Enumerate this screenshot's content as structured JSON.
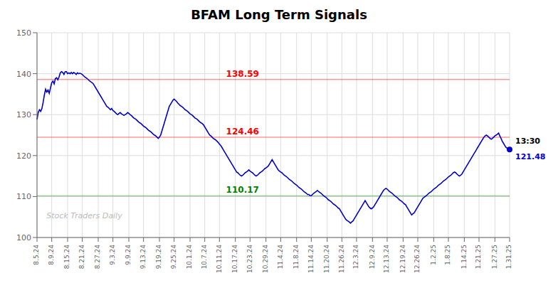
{
  "chart_data": {
    "type": "line",
    "title": "BFAM Long Term Signals",
    "color": "#0000cc",
    "grid": true,
    "ylim": [
      100,
      150
    ],
    "yticks": [
      100,
      110,
      120,
      130,
      140,
      150
    ],
    "watermark": "Stock Traders Daily",
    "reference_lines": [
      {
        "value": 138.59,
        "label": "138.59",
        "color": "red"
      },
      {
        "value": 124.46,
        "label": "124.46",
        "color": "red"
      },
      {
        "value": 110.17,
        "label": "110.17",
        "color": "green"
      }
    ],
    "annotations": [
      {
        "text": "13:30",
        "color": "black"
      },
      {
        "text": "121.48",
        "color": "#0000cc"
      }
    ],
    "categories": [
      "8.5.24",
      null,
      null,
      null,
      null,
      null,
      null,
      null,
      null,
      null,
      null,
      null,
      "8.9.24",
      null,
      null,
      null,
      null,
      null,
      null,
      null,
      null,
      null,
      null,
      null,
      null,
      "8.15.24",
      null,
      null,
      null,
      null,
      null,
      null,
      null,
      null,
      null,
      null,
      null,
      "8.21.24",
      null,
      null,
      null,
      null,
      null,
      null,
      null,
      null,
      null,
      null,
      null,
      null,
      "8.27.24",
      null,
      null,
      null,
      null,
      null,
      null,
      null,
      null,
      null,
      null,
      null,
      "9.3.24",
      null,
      null,
      null,
      null,
      null,
      null,
      null,
      null,
      null,
      null,
      null,
      null,
      "9.9.24",
      null,
      null,
      null,
      null,
      null,
      null,
      null,
      null,
      null,
      null,
      null,
      "9.13.24",
      null,
      null,
      null,
      null,
      null,
      null,
      null,
      null,
      null,
      null,
      null,
      null,
      "9.19.24",
      null,
      null,
      null,
      null,
      null,
      null,
      null,
      null,
      null,
      null,
      null,
      "9.25.24",
      null,
      null,
      null,
      null,
      null,
      null,
      null,
      null,
      null,
      null,
      null,
      null,
      "10.1.24",
      null,
      null,
      null,
      null,
      null,
      null,
      null,
      null,
      null,
      null,
      null,
      "10.7.24",
      null,
      null,
      null,
      null,
      null,
      null,
      null,
      null,
      null,
      null,
      null,
      "10.11.24",
      null,
      null,
      null,
      null,
      null,
      null,
      null,
      null,
      null,
      null,
      null,
      null,
      "10.17.24",
      null,
      null,
      null,
      null,
      null,
      null,
      null,
      null,
      null,
      null,
      null,
      "10.23.24",
      null,
      null,
      null,
      null,
      null,
      null,
      null,
      null,
      null,
      null,
      null,
      null,
      "10.29.24",
      null,
      null,
      null,
      null,
      null,
      null,
      null,
      null,
      null,
      null,
      null,
      "11.4.24",
      null,
      null,
      null,
      null,
      null,
      null,
      null,
      null,
      null,
      null,
      null,
      null,
      "11.8.24",
      null,
      null,
      null,
      null,
      null,
      null,
      null,
      null,
      null,
      null,
      null,
      "11.14.24",
      null,
      null,
      null,
      null,
      null,
      null,
      null,
      null,
      null,
      null,
      null,
      null,
      "11.20.24",
      null,
      null,
      null,
      null,
      null,
      null,
      null,
      null,
      null,
      null,
      null,
      "11.26.24",
      null,
      null,
      null,
      null,
      null,
      null,
      null,
      null,
      null,
      null,
      null,
      "12.3.24",
      null,
      null,
      null,
      null,
      null,
      null,
      null,
      null,
      null,
      null,
      null,
      null,
      "12.9.24",
      null,
      null,
      null,
      null,
      null,
      null,
      null,
      null,
      null,
      null,
      null,
      "12.13.24",
      null,
      null,
      null,
      null,
      null,
      null,
      null,
      null,
      null,
      null,
      null,
      null,
      "12.19.24",
      null,
      null,
      null,
      null,
      null,
      null,
      null,
      null,
      null,
      null,
      null,
      "12.26.24",
      null,
      null,
      null,
      null,
      null,
      null,
      null,
      null,
      null,
      null,
      null,
      null,
      "1.2.25",
      null,
      null,
      null,
      null,
      null,
      null,
      null,
      null,
      null,
      null,
      null,
      "1.8.25",
      null,
      null,
      null,
      null,
      null,
      null,
      null,
      null,
      null,
      null,
      null,
      null,
      "1.14.25",
      null,
      null,
      null,
      null,
      null,
      null,
      null,
      null,
      null,
      null,
      null,
      "1.21.25",
      null,
      null,
      null,
      null,
      null,
      null,
      null,
      null,
      null,
      null,
      null,
      null,
      "1.27.25",
      null,
      null,
      null,
      null,
      null,
      null,
      null,
      null,
      null,
      null,
      null,
      "1.31.25"
    ],
    "values": [
      128.8,
      130.5,
      131.2,
      130.8,
      131.5,
      133.0,
      134.8,
      136.2,
      135.5,
      136.0,
      135.2,
      136.5,
      137.8,
      138.2,
      137.5,
      138.8,
      139.0,
      138.5,
      139.2,
      140.2,
      140.5,
      140.3,
      139.8,
      140.5,
      140.5,
      140.0,
      140.2,
      140.0,
      140.3,
      140.0,
      140.3,
      140.1,
      139.8,
      140.2,
      140.0,
      140.1,
      140.0,
      139.8,
      139.5,
      139.2,
      139.0,
      138.8,
      138.5,
      138.2,
      138.0,
      137.8,
      137.5,
      137.0,
      136.5,
      136.0,
      135.5,
      135.0,
      134.5,
      134.0,
      133.5,
      133.0,
      132.5,
      132.0,
      131.8,
      131.5,
      131.2,
      131.5,
      131.0,
      130.8,
      130.5,
      130.2,
      130.0,
      130.3,
      130.5,
      130.2,
      130.0,
      129.8,
      130.0,
      130.2,
      130.5,
      130.3,
      130.0,
      129.8,
      129.5,
      129.2,
      129.0,
      128.8,
      128.5,
      128.2,
      128.0,
      127.8,
      127.5,
      127.2,
      127.0,
      126.8,
      126.5,
      126.2,
      126.0,
      125.8,
      125.5,
      125.2,
      125.0,
      124.8,
      124.5,
      124.2,
      124.5,
      125.0,
      126.0,
      127.0,
      128.0,
      129.0,
      130.0,
      131.0,
      132.0,
      132.5,
      133.0,
      133.5,
      133.8,
      133.5,
      133.2,
      132.8,
      132.5,
      132.2,
      132.0,
      131.8,
      131.5,
      131.2,
      131.0,
      130.8,
      130.5,
      130.2,
      130.0,
      129.8,
      129.5,
      129.2,
      129.0,
      128.8,
      128.5,
      128.2,
      128.0,
      127.8,
      127.5,
      127.0,
      126.5,
      126.0,
      125.5,
      125.0,
      124.8,
      124.5,
      124.2,
      124.0,
      123.8,
      123.5,
      123.2,
      122.8,
      122.5,
      122.0,
      121.5,
      121.0,
      120.5,
      120.0,
      119.5,
      119.0,
      118.5,
      118.0,
      117.5,
      117.0,
      116.5,
      116.0,
      115.8,
      115.5,
      115.2,
      115.0,
      115.2,
      115.5,
      115.8,
      116.0,
      116.2,
      116.5,
      116.2,
      116.0,
      115.8,
      115.5,
      115.2,
      115.0,
      115.2,
      115.5,
      115.8,
      116.0,
      116.2,
      116.5,
      116.8,
      117.0,
      117.2,
      117.5,
      118.0,
      118.5,
      119.0,
      118.5,
      118.0,
      117.5,
      117.0,
      116.5,
      116.2,
      116.0,
      115.8,
      115.5,
      115.2,
      115.0,
      114.8,
      114.5,
      114.2,
      114.0,
      113.8,
      113.5,
      113.2,
      113.0,
      112.8,
      112.5,
      112.2,
      112.0,
      111.8,
      111.5,
      111.2,
      111.0,
      110.8,
      110.5,
      110.5,
      110.2,
      110.2,
      110.5,
      110.8,
      111.0,
      111.2,
      111.5,
      111.2,
      111.0,
      110.8,
      110.5,
      110.2,
      110.0,
      109.8,
      109.5,
      109.2,
      109.0,
      108.8,
      108.5,
      108.2,
      108.0,
      107.8,
      107.5,
      107.2,
      107.0,
      106.5,
      106.0,
      105.5,
      105.0,
      104.5,
      104.2,
      104.0,
      103.8,
      103.5,
      103.8,
      104.0,
      104.5,
      105.0,
      105.5,
      106.0,
      106.5,
      107.0,
      107.5,
      108.0,
      108.5,
      109.0,
      108.5,
      108.0,
      107.5,
      107.2,
      107.0,
      107.2,
      107.5,
      108.0,
      108.5,
      109.0,
      109.5,
      110.0,
      110.5,
      111.0,
      111.5,
      111.8,
      112.0,
      111.8,
      111.5,
      111.2,
      111.0,
      110.8,
      110.5,
      110.2,
      110.0,
      109.8,
      109.5,
      109.2,
      109.0,
      108.8,
      108.5,
      108.2,
      108.0,
      107.5,
      107.0,
      106.5,
      106.0,
      105.5,
      105.8,
      106.0,
      106.5,
      107.0,
      107.5,
      108.0,
      108.5,
      109.0,
      109.5,
      109.8,
      110.0,
      110.2,
      110.5,
      110.8,
      111.0,
      111.2,
      111.5,
      111.8,
      112.0,
      112.2,
      112.5,
      112.8,
      113.0,
      113.2,
      113.5,
      113.8,
      114.0,
      114.2,
      114.5,
      114.8,
      115.0,
      115.2,
      115.5,
      115.8,
      116.0,
      115.8,
      115.5,
      115.2,
      115.0,
      115.2,
      115.5,
      116.0,
      116.5,
      117.0,
      117.5,
      118.0,
      118.5,
      119.0,
      119.5,
      120.0,
      120.5,
      121.0,
      121.5,
      122.0,
      122.5,
      123.0,
      123.5,
      124.0,
      124.5,
      124.8,
      125.0,
      124.8,
      124.5,
      124.2,
      124.0,
      124.2,
      124.5,
      124.8,
      125.0,
      125.2,
      125.5,
      124.8,
      124.2,
      123.5,
      123.0,
      122.5,
      122.0,
      121.8,
      121.5,
      121.48
    ]
  }
}
